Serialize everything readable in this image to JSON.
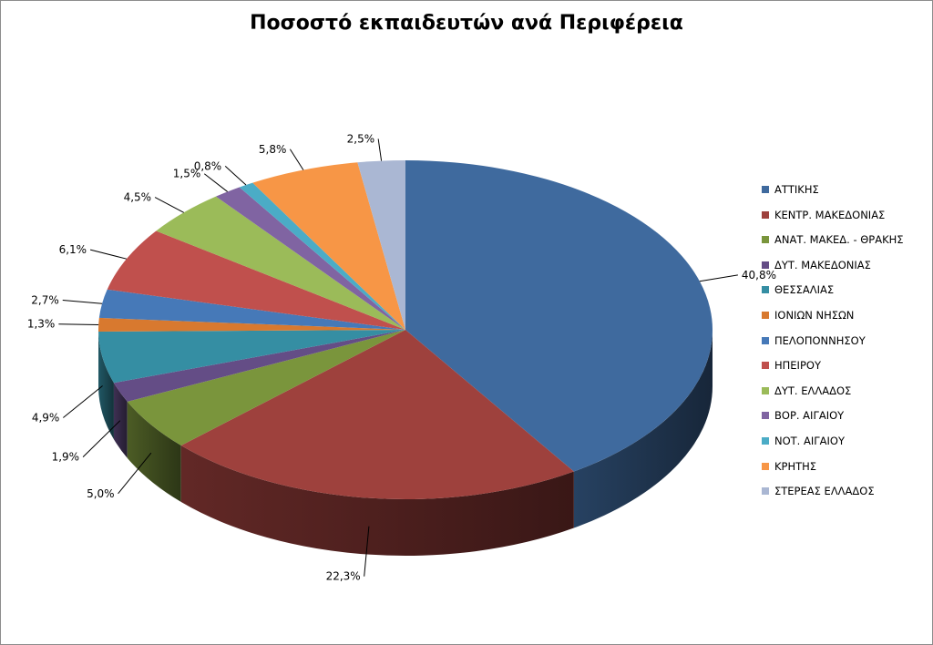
{
  "chart_data": {
    "type": "pie",
    "title": "Ποσοστό εκπαιδευτών ανά Περιφέρεια",
    "categories": [
      "ΑΤΤΙΚΗΣ",
      "ΚΕΝΤΡ. ΜΑΚΕΔΟΝΙΑΣ",
      "ΑΝΑΤ. ΜΑΚΕΔ. - ΘΡΑΚΗΣ",
      "ΔΥΤ. ΜΑΚΕΔΟΝΙΑΣ",
      "ΘΕΣΣΑΛΙΑΣ",
      "ΙΟΝΙΩΝ ΝΗΣΩΝ",
      "ΠΕΛΟΠΟΝΝΗΣΟΥ",
      "ΗΠΕΙΡΟΥ",
      "ΔΥΤ. ΕΛΛΑΔΟΣ",
      "ΒΟΡ. ΑΙΓΑΙΟΥ",
      "ΝΟΤ. ΑΙΓΑΙΟΥ",
      "ΚΡΗΤΗΣ",
      "ΣΤΕΡΕΑΣ ΕΛΛΑΔΟΣ"
    ],
    "values": [
      40.8,
      22.3,
      5.0,
      1.9,
      4.9,
      1.3,
      2.7,
      6.1,
      4.5,
      1.5,
      0.8,
      5.8,
      2.5
    ],
    "data_labels": [
      "40,8%",
      "22,3%",
      "5,0%",
      "1,9%",
      "4,9%",
      "1,3%",
      "2,7%",
      "6,1%",
      "4,5%",
      "1,5%",
      "0,8%",
      "5,8%",
      "2,5%"
    ],
    "colors": [
      "#3f6a9e",
      "#9e413d",
      "#7a953c",
      "#644d86",
      "#358ea3",
      "#d8792f",
      "#4679b8",
      "#c0504d",
      "#9bbb59",
      "#8064a2",
      "#4bacc6",
      "#f79646",
      "#aab7d3"
    ],
    "legend_position": "right",
    "style": "3d"
  }
}
